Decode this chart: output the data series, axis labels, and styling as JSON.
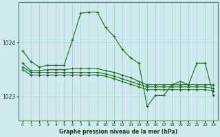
{
  "title": "Graphe pression niveau de la mer (hPa)",
  "bg_color": "#ceeaec",
  "grid_color": "#aad4d8",
  "line_color": "#1a6b1a",
  "xlim": [
    -0.5,
    23.5
  ],
  "ylim": [
    1022.55,
    1024.75
  ],
  "yticks": [
    1023,
    1024
  ],
  "xticks": [
    0,
    1,
    2,
    3,
    4,
    5,
    6,
    7,
    8,
    9,
    10,
    11,
    12,
    13,
    14,
    15,
    16,
    17,
    18,
    19,
    20,
    21,
    22,
    23
  ],
  "series": [
    [
      1023.85,
      1023.65,
      1023.55,
      1023.58,
      1023.58,
      1023.58,
      1024.05,
      1024.55,
      1024.57,
      1024.57,
      1024.28,
      1024.12,
      1023.88,
      1023.72,
      1023.62,
      1022.82,
      1023.02,
      1023.02,
      1023.22,
      1023.28,
      1023.22,
      1023.62,
      1023.62,
      1023.02
    ],
    [
      1023.62,
      1023.48,
      1023.48,
      1023.5,
      1023.5,
      1023.5,
      1023.52,
      1023.52,
      1023.52,
      1023.52,
      1023.48,
      1023.45,
      1023.4,
      1023.35,
      1023.28,
      1023.22,
      1023.22,
      1023.22,
      1023.22,
      1023.22,
      1023.22,
      1023.22,
      1023.22,
      1023.22
    ],
    [
      1023.55,
      1023.45,
      1023.45,
      1023.45,
      1023.45,
      1023.45,
      1023.45,
      1023.45,
      1023.45,
      1023.45,
      1023.42,
      1023.38,
      1023.33,
      1023.28,
      1023.23,
      1023.18,
      1023.18,
      1023.18,
      1023.18,
      1023.18,
      1023.18,
      1023.18,
      1023.18,
      1023.15
    ],
    [
      1023.5,
      1023.4,
      1023.4,
      1023.4,
      1023.4,
      1023.4,
      1023.4,
      1023.4,
      1023.4,
      1023.4,
      1023.38,
      1023.33,
      1023.28,
      1023.23,
      1023.18,
      1023.13,
      1023.13,
      1023.13,
      1023.13,
      1023.13,
      1023.13,
      1023.13,
      1023.13,
      1023.1
    ]
  ]
}
